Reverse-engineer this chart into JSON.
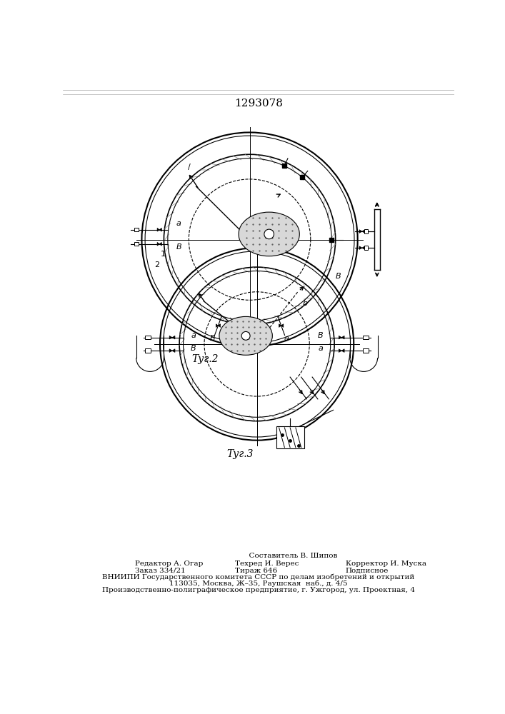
{
  "title": "1293078",
  "fig2_label": "Τуг.2",
  "fig3_label": "Τуг.3",
  "footer_lines": [
    "                              Составитель В. Шипов",
    "Редактор А. Огар              Техред И. Верес           Корректор И. Муска",
    "Заказ 334/21                  Тираж 646                  Подписное",
    "ВНИИПИ Государственного комитета СССР по делам изобретений и открытий",
    "            113035, Москва, Ж–35, Раушская  наб., д. 4/5",
    "Производственно-полиграфическое предприятие, г. Ужгород, ул. Проектная, 4"
  ],
  "bg_color": "#ffffff",
  "line_color": "#000000"
}
